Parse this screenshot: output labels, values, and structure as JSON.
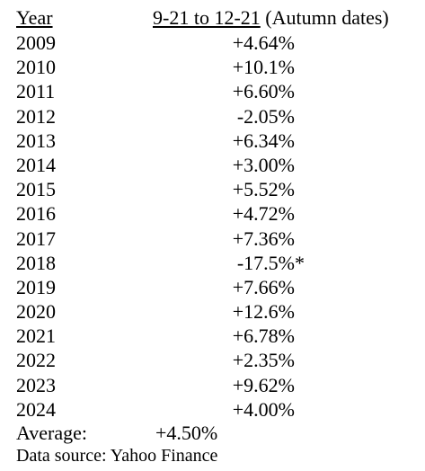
{
  "header": {
    "year_label": "Year",
    "range_label": "9-21 to 12-21",
    "range_note": "(Autumn dates)"
  },
  "rows": [
    {
      "year": "2009",
      "value": "+4.64%",
      "mark": ""
    },
    {
      "year": "2010",
      "value": "+10.1%",
      "mark": ""
    },
    {
      "year": "2011",
      "value": "+6.60%",
      "mark": ""
    },
    {
      "year": "2012",
      "value": "-2.05%",
      "mark": ""
    },
    {
      "year": "2013",
      "value": "+6.34%",
      "mark": ""
    },
    {
      "year": "2014",
      "value": "+3.00%",
      "mark": ""
    },
    {
      "year": "2015",
      "value": "+5.52%",
      "mark": ""
    },
    {
      "year": "2016",
      "value": "+4.72%",
      "mark": ""
    },
    {
      "year": "2017",
      "value": "+7.36%",
      "mark": ""
    },
    {
      "year": "2018",
      "value": "-17.5%",
      "mark": "*"
    },
    {
      "year": "2019",
      "value": "+7.66%",
      "mark": ""
    },
    {
      "year": "2020",
      "value": "+12.6%",
      "mark": ""
    },
    {
      "year": "2021",
      "value": "+6.78%",
      "mark": ""
    },
    {
      "year": "2022",
      "value": "+2.35%",
      "mark": ""
    },
    {
      "year": "2023",
      "value": "+9.62%",
      "mark": ""
    },
    {
      "year": "2024",
      "value": "+4.00%",
      "mark": ""
    }
  ],
  "average": {
    "label": "Average:",
    "value": "+4.50%"
  },
  "source": {
    "text": "Data source: Yahoo Finance"
  }
}
